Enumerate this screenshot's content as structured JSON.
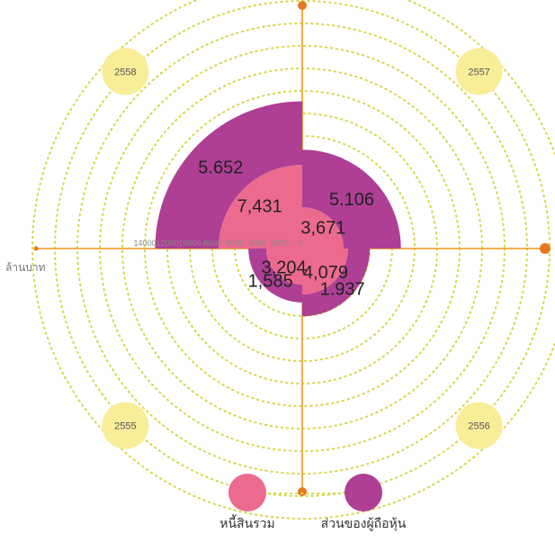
{
  "chart_data": {
    "type": "polar-area-stacked",
    "unit_label": "ล้านบาท",
    "radial_ticks": [
      "0",
      "2000",
      "4000",
      "6000",
      "8000",
      "10000",
      "12000",
      "14000"
    ],
    "radial_max": 14000,
    "categories": [
      "2558",
      "2557",
      "2556",
      "2555"
    ],
    "series": [
      {
        "name": "หนี้สินรวม",
        "color": "#EC6A8E",
        "values": [
          7431,
          3671,
          4079,
          3204
        ],
        "labels": [
          "7,431",
          "3,671",
          "4,079",
          "3,204"
        ]
      },
      {
        "name": "ส่วนของผู้ถือหุ้น",
        "color": "#AE3F94",
        "values": [
          5652,
          5106,
          1937,
          1585
        ],
        "labels": [
          "5.652",
          "5.106",
          "1.937",
          "1,585"
        ]
      }
    ],
    "colors": {
      "ring": "#D8D64A",
      "axis": "#F3A43A",
      "axis_dot": "#E8781E",
      "year_badge": "#F8EE98"
    }
  }
}
